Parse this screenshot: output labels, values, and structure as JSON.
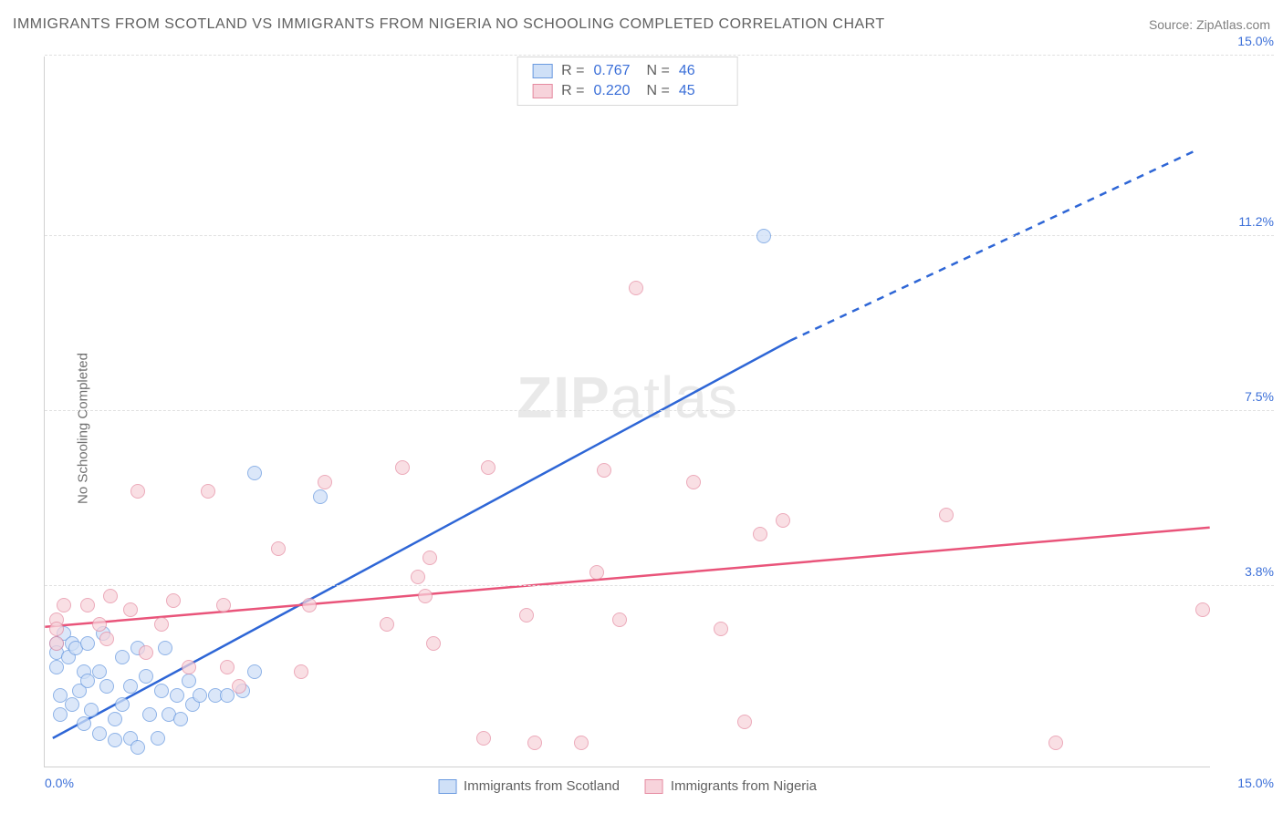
{
  "title": "IMMIGRANTS FROM SCOTLAND VS IMMIGRANTS FROM NIGERIA NO SCHOOLING COMPLETED CORRELATION CHART",
  "source_label": "Source:",
  "source_link": "ZipAtlas.com",
  "y_axis_label": "No Schooling Completed",
  "watermark_bold": "ZIP",
  "watermark_rest": "atlas",
  "chart": {
    "type": "scatter",
    "xlim": [
      0,
      15
    ],
    "ylim": [
      0,
      15
    ],
    "x_ticks": [
      {
        "v": 0,
        "label": "0.0%",
        "align": "left",
        "color": "#3b6fd8"
      },
      {
        "v": 15,
        "label": "15.0%",
        "align": "right",
        "color": "#3b6fd8"
      }
    ],
    "y_ticks": [
      {
        "v": 3.8,
        "label": "3.8%",
        "color": "#3b6fd8"
      },
      {
        "v": 7.5,
        "label": "7.5%",
        "color": "#3b6fd8"
      },
      {
        "v": 11.2,
        "label": "11.2%",
        "color": "#3b6fd8"
      },
      {
        "v": 15.0,
        "label": "15.0%",
        "color": "#3b6fd8"
      }
    ],
    "series": [
      {
        "id": "scotland",
        "legend_label": "Immigrants from Scotland",
        "stats": {
          "r_label": "R =",
          "r": "0.767",
          "n_label": "N =",
          "n": "46"
        },
        "marker_fill": "#cfe0f7",
        "marker_stroke": "#6a9ae0",
        "marker_opacity": 0.75,
        "trend": {
          "color": "#2e66d6",
          "width": 2.5,
          "x1": 0.1,
          "y1": 0.6,
          "x2": 9.6,
          "y2": 9.0,
          "dash_from_x": 9.6,
          "x3": 14.8,
          "y3": 13.0
        },
        "points": [
          [
            0.15,
            2.6
          ],
          [
            0.15,
            2.4
          ],
          [
            0.15,
            2.1
          ],
          [
            0.2,
            1.5
          ],
          [
            0.2,
            1.1
          ],
          [
            0.25,
            2.8
          ],
          [
            0.3,
            2.3
          ],
          [
            0.35,
            2.6
          ],
          [
            0.35,
            1.3
          ],
          [
            0.4,
            2.5
          ],
          [
            0.45,
            1.6
          ],
          [
            0.5,
            2.0
          ],
          [
            0.5,
            0.9
          ],
          [
            0.55,
            2.6
          ],
          [
            0.55,
            1.8
          ],
          [
            0.6,
            1.2
          ],
          [
            0.7,
            2.0
          ],
          [
            0.7,
            0.7
          ],
          [
            0.75,
            2.8
          ],
          [
            0.8,
            1.7
          ],
          [
            0.9,
            1.0
          ],
          [
            0.9,
            0.55
          ],
          [
            1.0,
            2.3
          ],
          [
            1.0,
            1.3
          ],
          [
            1.1,
            1.7
          ],
          [
            1.1,
            0.6
          ],
          [
            1.2,
            2.5
          ],
          [
            1.2,
            0.4
          ],
          [
            1.3,
            1.9
          ],
          [
            1.35,
            1.1
          ],
          [
            1.45,
            0.6
          ],
          [
            1.5,
            1.6
          ],
          [
            1.55,
            2.5
          ],
          [
            1.6,
            1.1
          ],
          [
            1.7,
            1.5
          ],
          [
            1.75,
            1.0
          ],
          [
            1.85,
            1.8
          ],
          [
            1.9,
            1.3
          ],
          [
            2.0,
            1.5
          ],
          [
            2.2,
            1.5
          ],
          [
            2.35,
            1.5
          ],
          [
            2.55,
            1.6
          ],
          [
            2.7,
            6.2
          ],
          [
            2.7,
            2.0
          ],
          [
            3.55,
            5.7
          ],
          [
            9.25,
            11.2
          ]
        ]
      },
      {
        "id": "nigeria",
        "legend_label": "Immigrants from Nigeria",
        "stats": {
          "r_label": "R =",
          "r": "0.220",
          "n_label": "N =",
          "n": "45"
        },
        "marker_fill": "#f7d3db",
        "marker_stroke": "#e58aa0",
        "marker_opacity": 0.72,
        "trend": {
          "color": "#e9547a",
          "width": 2.5,
          "x1": 0.0,
          "y1": 2.95,
          "x2": 15.0,
          "y2": 5.05
        },
        "points": [
          [
            0.15,
            3.1
          ],
          [
            0.15,
            2.9
          ],
          [
            0.15,
            2.6
          ],
          [
            0.25,
            3.4
          ],
          [
            0.55,
            3.4
          ],
          [
            0.7,
            3.0
          ],
          [
            0.8,
            2.7
          ],
          [
            0.85,
            3.6
          ],
          [
            1.1,
            3.3
          ],
          [
            1.2,
            5.8
          ],
          [
            1.3,
            2.4
          ],
          [
            1.5,
            3.0
          ],
          [
            1.65,
            3.5
          ],
          [
            1.85,
            2.1
          ],
          [
            2.1,
            5.8
          ],
          [
            2.3,
            3.4
          ],
          [
            2.35,
            2.1
          ],
          [
            2.5,
            1.7
          ],
          [
            3.0,
            4.6
          ],
          [
            3.3,
            2.0
          ],
          [
            3.4,
            3.4
          ],
          [
            3.6,
            6.0
          ],
          [
            4.4,
            3.0
          ],
          [
            4.6,
            6.3
          ],
          [
            4.8,
            4.0
          ],
          [
            4.9,
            3.6
          ],
          [
            4.95,
            4.4
          ],
          [
            5.0,
            2.6
          ],
          [
            5.65,
            0.6
          ],
          [
            5.7,
            6.3
          ],
          [
            6.2,
            3.2
          ],
          [
            6.3,
            0.5
          ],
          [
            6.9,
            0.5
          ],
          [
            7.1,
            4.1
          ],
          [
            7.2,
            6.25
          ],
          [
            7.4,
            3.1
          ],
          [
            7.6,
            10.1
          ],
          [
            8.35,
            6.0
          ],
          [
            8.7,
            2.9
          ],
          [
            9.0,
            0.95
          ],
          [
            9.2,
            4.9
          ],
          [
            9.5,
            5.2
          ],
          [
            11.6,
            5.3
          ],
          [
            13.0,
            0.5
          ],
          [
            14.9,
            3.3
          ]
        ]
      }
    ],
    "background_color": "#ffffff",
    "grid_color": "#e0e0e0"
  }
}
